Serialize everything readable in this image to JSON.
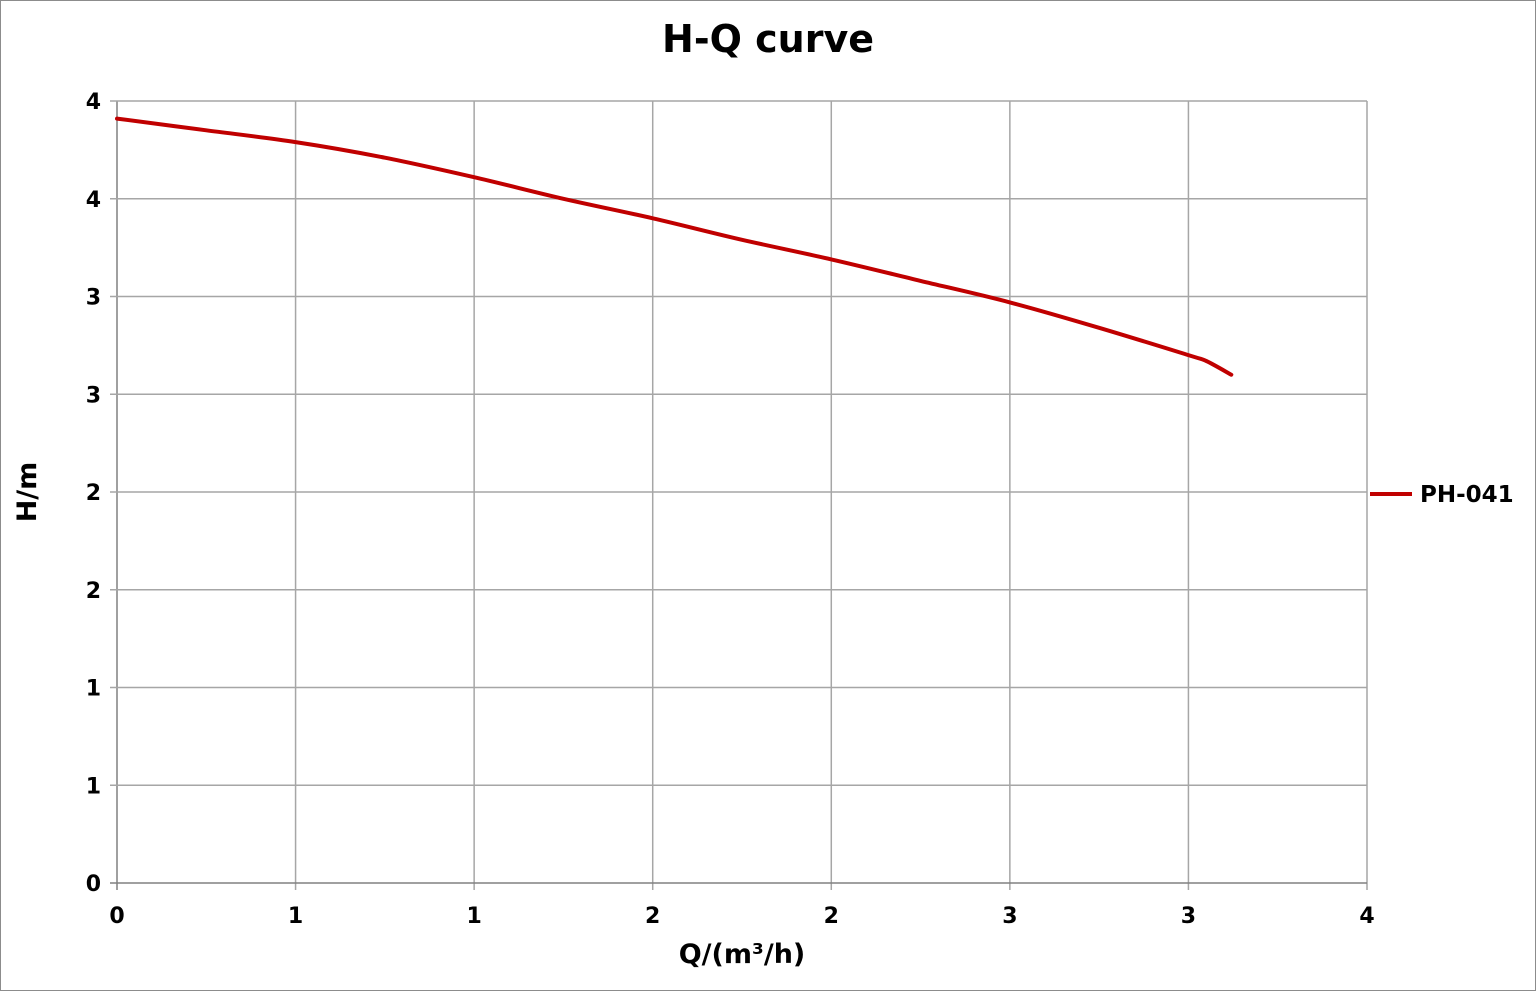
{
  "chart_data": {
    "type": "line",
    "title": "H-Q  curve",
    "xlabel": "Q/(m³/h)",
    "ylabel": "H/m",
    "xlim": [
      0,
      3.5
    ],
    "ylim": [
      0,
      4
    ],
    "x_ticks": [
      "0",
      "1",
      "1",
      "2",
      "2",
      "3",
      "3",
      "4"
    ],
    "y_ticks": [
      "0",
      "1",
      "1",
      "2",
      "2",
      "3",
      "3",
      "4",
      "4"
    ],
    "grid": true,
    "legend_position": "right",
    "series": [
      {
        "name": "PH-041",
        "color": "#c00000",
        "x": [
          0,
          0.25,
          0.5,
          0.75,
          1.0,
          1.25,
          1.5,
          1.75,
          2.0,
          2.25,
          2.5,
          2.75,
          3.0,
          3.05,
          3.12
        ],
        "y": [
          3.91,
          3.85,
          3.79,
          3.71,
          3.61,
          3.5,
          3.4,
          3.29,
          3.19,
          3.08,
          2.97,
          2.84,
          2.7,
          2.67,
          2.6
        ]
      }
    ]
  }
}
